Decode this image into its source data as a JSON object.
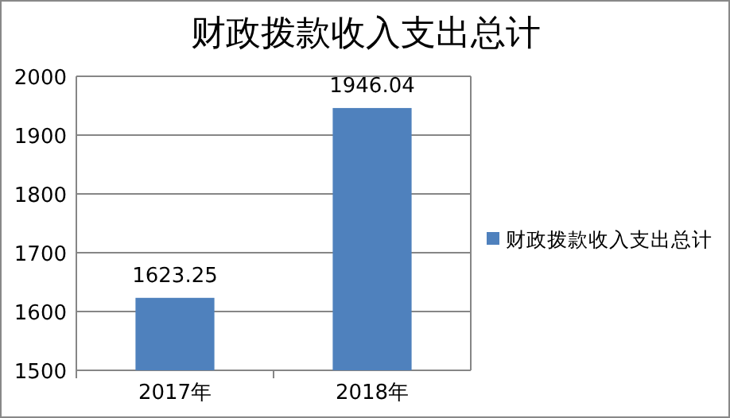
{
  "chart_data": {
    "type": "bar",
    "title": "财政拨款收入支出总计",
    "categories": [
      "2017年",
      "2018年"
    ],
    "series": [
      {
        "name": "财政拨款收入支出总计",
        "color": "#4f81bd",
        "values": [
          1623.25,
          1946.04
        ]
      }
    ],
    "ylim": [
      1500,
      2000
    ],
    "yticks": [
      1500,
      1600,
      1700,
      1800,
      1900,
      2000
    ],
    "grid": "y",
    "legend": "right",
    "data_labels": true
  }
}
